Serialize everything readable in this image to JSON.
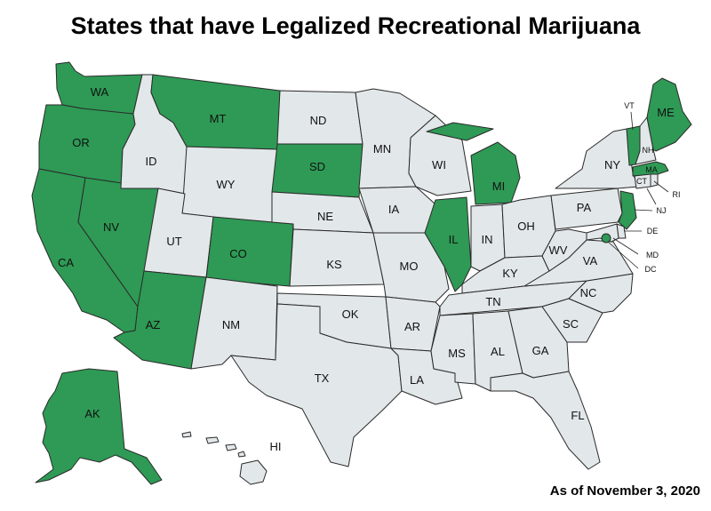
{
  "title": "States that have Legalized Recreational Marijuana",
  "footnote": "As of November 3, 2020",
  "colors": {
    "legalized": "#2e9a55",
    "not_legalized": "#e2e7ea",
    "border": "#2a2a2a"
  },
  "states": [
    {
      "code": "WA",
      "legalized": true
    },
    {
      "code": "OR",
      "legalized": true
    },
    {
      "code": "CA",
      "legalized": true
    },
    {
      "code": "NV",
      "legalized": true
    },
    {
      "code": "AZ",
      "legalized": true
    },
    {
      "code": "MT",
      "legalized": true
    },
    {
      "code": "CO",
      "legalized": true
    },
    {
      "code": "SD",
      "legalized": true
    },
    {
      "code": "IL",
      "legalized": true
    },
    {
      "code": "MI",
      "legalized": true
    },
    {
      "code": "NJ",
      "legalized": true
    },
    {
      "code": "VT",
      "legalized": true
    },
    {
      "code": "ME",
      "legalized": true
    },
    {
      "code": "MA",
      "legalized": true
    },
    {
      "code": "AK",
      "legalized": true
    },
    {
      "code": "DC",
      "legalized": true
    },
    {
      "code": "ID",
      "legalized": false
    },
    {
      "code": "WY",
      "legalized": false
    },
    {
      "code": "UT",
      "legalized": false
    },
    {
      "code": "NM",
      "legalized": false
    },
    {
      "code": "ND",
      "legalized": false
    },
    {
      "code": "NE",
      "legalized": false
    },
    {
      "code": "KS",
      "legalized": false
    },
    {
      "code": "OK",
      "legalized": false
    },
    {
      "code": "TX",
      "legalized": false
    },
    {
      "code": "MN",
      "legalized": false
    },
    {
      "code": "IA",
      "legalized": false
    },
    {
      "code": "MO",
      "legalized": false
    },
    {
      "code": "AR",
      "legalized": false
    },
    {
      "code": "LA",
      "legalized": false
    },
    {
      "code": "WI",
      "legalized": false
    },
    {
      "code": "IN",
      "legalized": false
    },
    {
      "code": "OH",
      "legalized": false
    },
    {
      "code": "KY",
      "legalized": false
    },
    {
      "code": "TN",
      "legalized": false
    },
    {
      "code": "MS",
      "legalized": false
    },
    {
      "code": "AL",
      "legalized": false
    },
    {
      "code": "GA",
      "legalized": false
    },
    {
      "code": "FL",
      "legalized": false
    },
    {
      "code": "SC",
      "legalized": false
    },
    {
      "code": "NC",
      "legalized": false
    },
    {
      "code": "VA",
      "legalized": false
    },
    {
      "code": "WV",
      "legalized": false
    },
    {
      "code": "PA",
      "legalized": false
    },
    {
      "code": "NY",
      "legalized": false
    },
    {
      "code": "NH",
      "legalized": false
    },
    {
      "code": "CT",
      "legalized": false
    },
    {
      "code": "RI",
      "legalized": false
    },
    {
      "code": "DE",
      "legalized": false
    },
    {
      "code": "MD",
      "legalized": false
    },
    {
      "code": "HI",
      "legalized": false
    }
  ]
}
